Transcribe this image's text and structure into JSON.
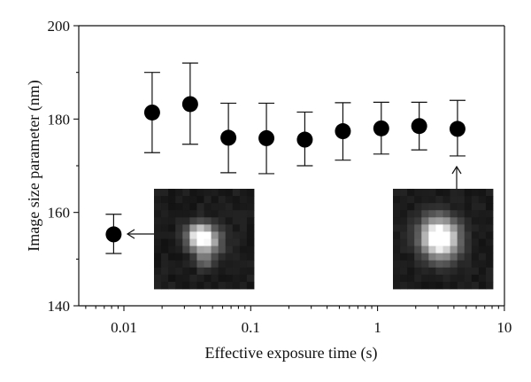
{
  "chart_data": {
    "type": "scatter",
    "xlabel": "Effective exposure time (s)",
    "ylabel": "Image size parameter (nm)",
    "x_scale": "log",
    "xlim": [
      0.005,
      10
    ],
    "ylim": [
      140,
      200
    ],
    "x_ticks": [
      {
        "value": 0.01,
        "label": "0.01"
      },
      {
        "value": 0.1,
        "label": "0.1"
      },
      {
        "value": 1,
        "label": "1"
      },
      {
        "value": 10,
        "label": "10"
      }
    ],
    "y_ticks": [
      {
        "value": 140,
        "label": "140"
      },
      {
        "value": 160,
        "label": "160"
      },
      {
        "value": 180,
        "label": "180"
      },
      {
        "value": 200,
        "label": "200"
      }
    ],
    "grid": false,
    "series": [
      {
        "color": "#000000",
        "points": [
          {
            "x": 0.0083,
            "y": 155.3,
            "err_low": 151.2,
            "err_high": 159.6
          },
          {
            "x": 0.0167,
            "y": 181.4,
            "err_low": 172.8,
            "err_high": 190.0
          },
          {
            "x": 0.0333,
            "y": 183.2,
            "err_low": 174.6,
            "err_high": 192.0
          },
          {
            "x": 0.0667,
            "y": 176.0,
            "err_low": 168.5,
            "err_high": 183.4
          },
          {
            "x": 0.133,
            "y": 175.9,
            "err_low": 168.3,
            "err_high": 183.4
          },
          {
            "x": 0.267,
            "y": 175.6,
            "err_low": 170.0,
            "err_high": 181.5
          },
          {
            "x": 0.533,
            "y": 177.4,
            "err_low": 171.2,
            "err_high": 183.5
          },
          {
            "x": 1.07,
            "y": 178.0,
            "err_low": 172.5,
            "err_high": 183.6
          },
          {
            "x": 2.13,
            "y": 178.5,
            "err_low": 173.4,
            "err_high": 183.6
          },
          {
            "x": 4.27,
            "y": 177.9,
            "err_low": 172.1,
            "err_high": 184.0
          }
        ]
      }
    ],
    "insets": [
      {
        "kind": "microscopy-spot-image",
        "points_to_x": 0.0083,
        "spot": "small, dim, irregular"
      },
      {
        "kind": "microscopy-spot-image",
        "points_to_x": 4.27,
        "spot": "larger, bright, round"
      }
    ]
  }
}
